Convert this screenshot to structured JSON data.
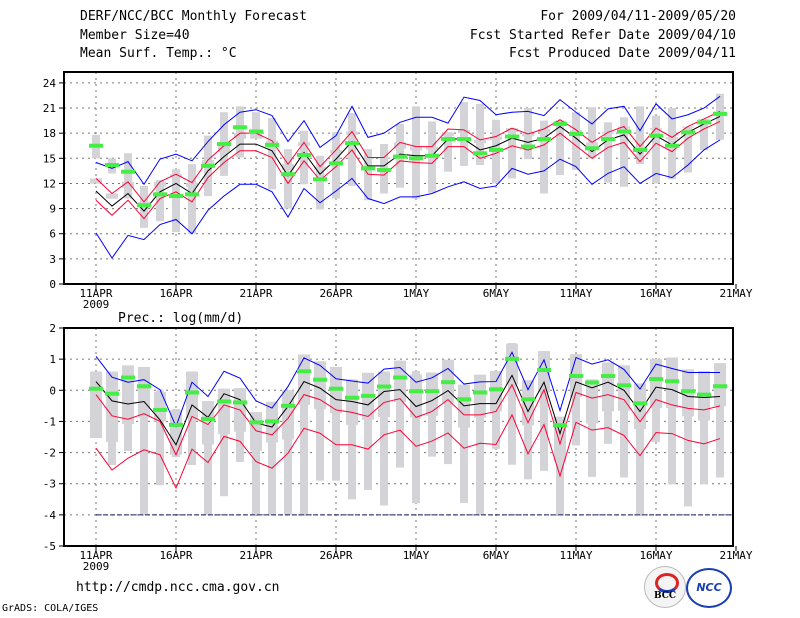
{
  "header": {
    "title": "DERF/NCC/BCC Monthly Forecast",
    "member_size": "Member Size=40",
    "variable": "Mean Surf. Temp.: °C",
    "period": "For 2009/04/11-2009/05/20",
    "started": "Fcst Started Refer Date 2009/04/10",
    "produced": "Fcst Produced Date 2009/04/11"
  },
  "footer": {
    "url": "http://cmdp.ncc.cma.gov.cn",
    "credit": "GrADS: COLA/IGES",
    "logo_bcc": "BCC",
    "logo_ncc": "NCC"
  },
  "colors": {
    "mean": "#000000",
    "red": "#ff0033",
    "blue": "#0000ff",
    "obs": "#44ee44",
    "box": "#d3d3d8"
  },
  "chart_data": [
    {
      "type": "line",
      "title": "Mean Surf. Temp.: °C",
      "x_tick_labels": [
        "11APR",
        "16APR",
        "21APR",
        "26APR",
        "1MAY",
        "6MAY",
        "11MAY",
        "16MAY",
        "21MAY"
      ],
      "year_label": "2009",
      "ylim": [
        0,
        25.3
      ],
      "y_ticks": [
        "0",
        "3",
        "6",
        "9",
        "12",
        "15",
        "18",
        "21",
        "24"
      ],
      "days": 40,
      "mean": [
        11.1,
        9.3,
        10.8,
        8.7,
        11.0,
        12.0,
        10.8,
        13.5,
        15.2,
        16.7,
        16.7,
        15.9,
        12.9,
        15.7,
        13.1,
        14.9,
        17.0,
        14.1,
        14.1,
        15.5,
        15.3,
        15.3,
        17.3,
        17.3,
        16.0,
        16.5,
        17.4,
        16.9,
        17.4,
        18.8,
        17.4,
        15.8,
        17.2,
        17.8,
        15.5,
        17.7,
        16.6,
        18.1,
        19.1,
        20.0
      ],
      "red_upper": [
        12.6,
        10.8,
        12.2,
        9.8,
        12.2,
        13.1,
        12.1,
        14.8,
        16.5,
        18.0,
        18.0,
        17.1,
        14.3,
        16.9,
        14.0,
        16.0,
        18.2,
        15.1,
        15.1,
        16.9,
        16.4,
        16.4,
        18.5,
        18.4,
        17.2,
        17.6,
        18.6,
        17.9,
        18.5,
        19.6,
        18.4,
        16.9,
        18.1,
        18.8,
        16.4,
        18.6,
        17.5,
        18.8,
        19.7,
        20.6
      ],
      "red_lower": [
        10.0,
        8.2,
        10.0,
        7.8,
        10.2,
        11.0,
        9.8,
        12.7,
        14.5,
        15.9,
        15.9,
        15.1,
        12.0,
        14.7,
        12.4,
        14.0,
        16.0,
        13.1,
        13.0,
        14.7,
        14.5,
        14.4,
        16.4,
        16.4,
        15.0,
        15.6,
        16.5,
        16.0,
        16.6,
        18.0,
        16.5,
        15.0,
        16.3,
        16.9,
        14.6,
        16.8,
        15.8,
        17.4,
        18.5,
        19.4
      ],
      "blue_upper": [
        14.5,
        13.8,
        14.6,
        11.9,
        14.9,
        15.5,
        14.7,
        17.0,
        19.0,
        20.5,
        20.8,
        20.1,
        17.0,
        19.5,
        16.3,
        17.7,
        21.2,
        17.5,
        18.0,
        19.3,
        19.9,
        19.9,
        19.2,
        22.3,
        21.9,
        20.2,
        20.5,
        20.6,
        20.1,
        22.0,
        20.5,
        19.1,
        20.9,
        21.2,
        18.3,
        21.5,
        19.7,
        20.2,
        21.0,
        22.4
      ],
      "blue_lower": [
        6.1,
        3.1,
        5.8,
        5.3,
        7.1,
        7.7,
        6.0,
        8.8,
        10.5,
        11.9,
        11.9,
        11.0,
        8.0,
        11.4,
        9.7,
        11.1,
        12.6,
        10.2,
        9.6,
        10.4,
        10.4,
        10.8,
        11.6,
        12.2,
        11.4,
        11.7,
        13.8,
        13.1,
        13.5,
        14.9,
        14.0,
        11.9,
        13.2,
        14.0,
        12.0,
        13.2,
        12.7,
        14.2,
        16.0,
        17.2
      ],
      "box_min": [
        15.0,
        13.2,
        10.2,
        6.7,
        7.5,
        6.2,
        6.0,
        10.5,
        12.9,
        15.1,
        17.5,
        11.3,
        9.0,
        11.9,
        8.9,
        10.2,
        11.7,
        10.0,
        10.8,
        11.5,
        10.2,
        10.9,
        13.4,
        14.1,
        14.2,
        12.0,
        12.6,
        14.9,
        10.8,
        13.0,
        13.6,
        15.0,
        12.1,
        11.6,
        14.3,
        12.0,
        12.5,
        13.3,
        16.0,
        17.2
      ],
      "box_max": [
        17.8,
        15.0,
        15.6,
        11.7,
        12.4,
        13.7,
        14.3,
        17.7,
        20.5,
        21.2,
        20.5,
        19.8,
        16.1,
        18.3,
        15.3,
        18.1,
        20.4,
        16.1,
        16.7,
        19.1,
        21.2,
        19.4,
        18.1,
        21.7,
        21.5,
        19.6,
        18.6,
        21.0,
        19.5,
        19.5,
        20.5,
        21.1,
        19.3,
        19.9,
        21.2,
        20.1,
        21.0,
        18.8,
        19.7,
        22.7
      ],
      "observed": [
        16.5,
        14.2,
        13.4,
        9.4,
        10.7,
        10.5,
        10.7,
        14.1,
        16.7,
        18.7,
        18.2,
        16.6,
        13.1,
        15.4,
        12.5,
        14.4,
        16.8,
        13.8,
        13.6,
        15.2,
        15.0,
        15.3,
        17.3,
        17.3,
        15.6,
        16.0,
        17.6,
        16.4,
        17.3,
        19.1,
        17.9,
        16.2,
        17.3,
        18.2,
        16.0,
        17.7,
        16.5,
        18.1,
        19.3,
        20.3
      ]
    },
    {
      "type": "line",
      "title": "Prec.: log(mm/d)",
      "x_tick_labels": [
        "11APR",
        "16APR",
        "21APR",
        "26APR",
        "1MAY",
        "6MAY",
        "11MAY",
        "16MAY",
        "21MAY"
      ],
      "year_label": "2009",
      "ylim": [
        -5,
        2
      ],
      "y_ticks": [
        "-5",
        "-4",
        "-3",
        "-2",
        "-1",
        "0",
        "1",
        "2"
      ],
      "reference_line": -4,
      "days": 40,
      "mean": [
        0.28,
        -0.34,
        -0.44,
        -0.36,
        -0.95,
        -1.75,
        -0.47,
        -0.87,
        -0.11,
        -0.3,
        -1.05,
        -1.18,
        -0.52,
        0.28,
        0.07,
        -0.3,
        -0.36,
        -0.47,
        -0.04,
        0.02,
        -0.52,
        -0.33,
        -0.01,
        -0.5,
        -0.43,
        -0.43,
        0.48,
        -0.68,
        0.26,
        -1.39,
        0.27,
        0.08,
        0.26,
        0.0,
        -0.68,
        0.1,
        0.02,
        -0.2,
        -0.23,
        -0.2
      ],
      "red_upper": [
        -0.14,
        -0.82,
        -0.93,
        -0.75,
        -1.0,
        -2.07,
        -0.84,
        -1.1,
        -0.47,
        -0.63,
        -1.3,
        -1.43,
        -0.9,
        -0.14,
        -0.3,
        -0.63,
        -0.71,
        -0.84,
        -0.39,
        -0.27,
        -0.87,
        -0.68,
        -0.3,
        -0.79,
        -0.79,
        -0.68,
        0.18,
        -1.04,
        0.02,
        -1.72,
        -0.07,
        -0.25,
        -0.14,
        -0.3,
        -1.01,
        -0.3,
        -0.47,
        -0.58,
        -0.63,
        -0.5
      ],
      "red_lower": [
        -1.86,
        -2.56,
        -2.18,
        -1.91,
        -2.07,
        -3.14,
        -1.89,
        -2.32,
        -1.48,
        -1.64,
        -2.29,
        -2.5,
        -2.02,
        -1.22,
        -1.38,
        -1.75,
        -1.75,
        -1.89,
        -1.43,
        -1.28,
        -1.8,
        -1.63,
        -1.37,
        -1.86,
        -1.7,
        -1.74,
        -0.79,
        -2.04,
        -1.1,
        -2.75,
        -1.03,
        -1.28,
        -1.2,
        -1.45,
        -2.1,
        -1.36,
        -1.39,
        -1.61,
        -1.72,
        -1.55
      ],
      "blue_upper": [
        1.09,
        0.42,
        0.26,
        0.34,
        0.02,
        -1.16,
        0.26,
        -0.2,
        0.61,
        0.39,
        -0.34,
        -0.57,
        0.12,
        1.04,
        0.8,
        0.37,
        0.3,
        0.23,
        0.68,
        0.73,
        0.26,
        0.4,
        0.7,
        0.2,
        0.27,
        0.28,
        1.22,
        0.02,
        0.98,
        -0.65,
        1.05,
        0.84,
        0.98,
        0.67,
        0.04,
        0.84,
        0.7,
        0.57,
        0.57,
        0.57
      ],
      "box_min": [
        -1.3,
        -2.4,
        -1.95,
        -4,
        -3.05,
        -2.15,
        -2.4,
        -4,
        -3.4,
        -2.3,
        -4,
        -4,
        -4,
        -4,
        -2.9,
        -2.9,
        -3.5,
        -3.2,
        -3.7,
        -2.48,
        -3.62,
        -2.13,
        -2.37,
        -3.62,
        -4,
        -1.88,
        -2.39,
        -2.86,
        -2.59,
        -4,
        -1.77,
        -2.78,
        -1.72,
        -2.8,
        -4,
        -1.66,
        -3.02,
        -3.73,
        -3.02,
        -2.8
      ],
      "box_max": [
        0.6,
        0.6,
        0.8,
        0.75,
        0.0,
        -0.6,
        0.6,
        -0.35,
        0.05,
        0.07,
        -0.7,
        -0.37,
        0.0,
        1.15,
        0.93,
        0.75,
        0.35,
        0.56,
        0.6,
        0.95,
        0.62,
        0.57,
        0.98,
        0.18,
        0.5,
        0.62,
        1.52,
        0.32,
        1.26,
        -0.85,
        1.16,
        0.35,
        0.89,
        0.8,
        0.22,
        1.0,
        1.05,
        0.67,
        0.62,
        0.87
      ],
      "observed": [
        0.05,
        -0.11,
        0.41,
        0.13,
        -0.63,
        -1.11,
        -0.07,
        -0.92,
        -0.36,
        -0.39,
        -1.03,
        -1.0,
        -0.5,
        0.61,
        0.34,
        0.05,
        -0.24,
        -0.18,
        0.12,
        0.41,
        -0.03,
        -0.03,
        0.26,
        -0.29,
        -0.07,
        0.03,
        1.01,
        -0.29,
        0.65,
        -1.12,
        0.46,
        0.25,
        0.46,
        0.16,
        -0.42,
        0.36,
        0.29,
        -0.03,
        -0.14,
        0.13
      ]
    }
  ]
}
